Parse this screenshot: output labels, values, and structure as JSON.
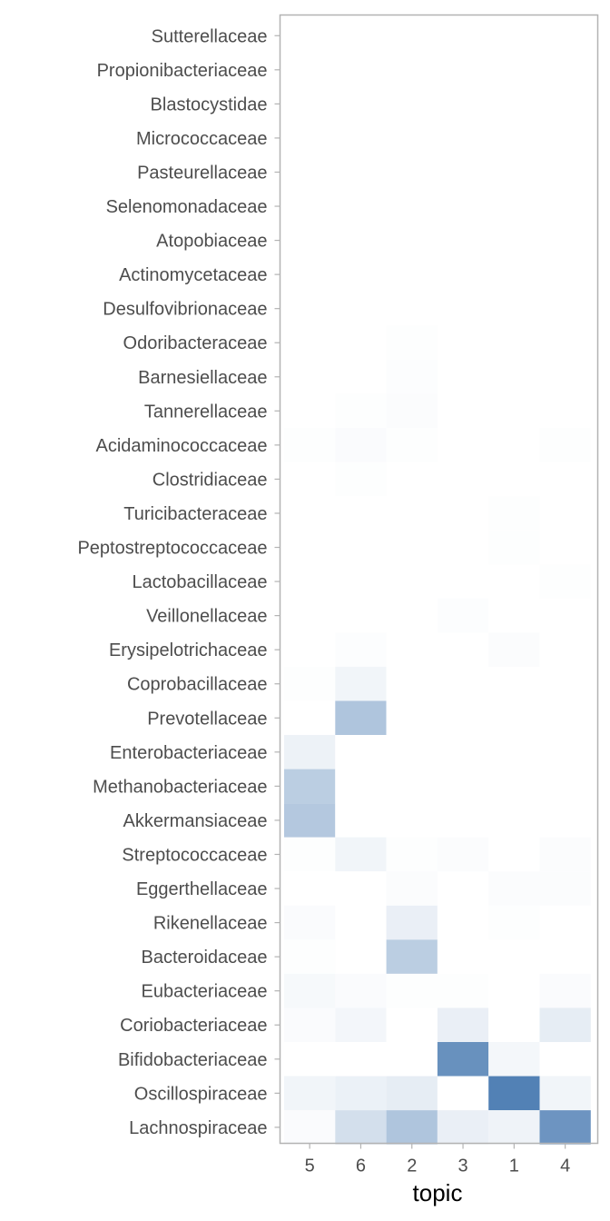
{
  "chart_data": {
    "type": "heatmap",
    "xlabel": "topic",
    "ylabel": "",
    "x_categories": [
      "5",
      "6",
      "2",
      "3",
      "1",
      "4"
    ],
    "y_categories": [
      "Sutterellaceae",
      "Propionibacteriaceae",
      "Blastocystidae",
      "Micrococcaceae",
      "Pasteurellaceae",
      "Selenomonadaceae",
      "Atopobiaceae",
      "Actinomycetaceae",
      "Desulfovibrionaceae",
      "Odoribacteraceae",
      "Barnesiellaceae",
      "Tannerellaceae",
      "Acidaminococcaceae",
      "Clostridiaceae",
      "Turicibacteraceae",
      "Peptostreptococcaceae",
      "Lactobacillaceae",
      "Veillonellaceae",
      "Erysipelotrichaceae",
      "Coprobacillaceae",
      "Prevotellaceae",
      "Enterobacteriaceae",
      "Methanobacteriaceae",
      "Akkermansiaceae",
      "Streptococcaceae",
      "Eggerthellaceae",
      "Rikenellaceae",
      "Bacteroidaceae",
      "Eubacteriaceae",
      "Coriobacteriaceae",
      "Bifidobacteriaceae",
      "Oscillospiraceae",
      "Lachnospiraceae"
    ],
    "values": [
      [
        0,
        0,
        0,
        0,
        0,
        0
      ],
      [
        0,
        0,
        0,
        0,
        0,
        0
      ],
      [
        0,
        0,
        0,
        0,
        0,
        0
      ],
      [
        0,
        0,
        0,
        0,
        0,
        0
      ],
      [
        0,
        0,
        0,
        0,
        0,
        0
      ],
      [
        0,
        0,
        0,
        0,
        0,
        0
      ],
      [
        0,
        0,
        0,
        0,
        0,
        0
      ],
      [
        0,
        0,
        0,
        0,
        0,
        0
      ],
      [
        0,
        0,
        0,
        0,
        0,
        0
      ],
      [
        0,
        0,
        0.01,
        0,
        0,
        0
      ],
      [
        0,
        0,
        0.015,
        0,
        0,
        0
      ],
      [
        0,
        0.01,
        0.02,
        0,
        0,
        0
      ],
      [
        0.01,
        0.03,
        0.01,
        0,
        0,
        0.01
      ],
      [
        0,
        0.01,
        0,
        0,
        0,
        0
      ],
      [
        0,
        0,
        0,
        0,
        0.01,
        0
      ],
      [
        0,
        0,
        0,
        0,
        0.01,
        0
      ],
      [
        0,
        0,
        0,
        0,
        0,
        0.01
      ],
      [
        0,
        0,
        0,
        0.015,
        0,
        0
      ],
      [
        0,
        0.015,
        0,
        0,
        0.02,
        0
      ],
      [
        0.01,
        0.08,
        0,
        0,
        0,
        0
      ],
      [
        0,
        0.45,
        0,
        0,
        0,
        0
      ],
      [
        0.1,
        0,
        0,
        0,
        0,
        0
      ],
      [
        0.38,
        0,
        0,
        0,
        0,
        0
      ],
      [
        0.42,
        0,
        0,
        0,
        0,
        0
      ],
      [
        0.01,
        0.08,
        0.01,
        0.02,
        0,
        0.02
      ],
      [
        0,
        0,
        0.02,
        0,
        0.02,
        0.02
      ],
      [
        0.03,
        0,
        0.12,
        0,
        0.01,
        0
      ],
      [
        0.01,
        0,
        0.38,
        0,
        0,
        0
      ],
      [
        0.05,
        0.03,
        0.01,
        0.01,
        0,
        0.03
      ],
      [
        0.03,
        0.07,
        0,
        0.12,
        0,
        0.14
      ],
      [
        0,
        0,
        0,
        0.85,
        0.06,
        0
      ],
      [
        0.08,
        0.11,
        0.14,
        0,
        0.97,
        0.08
      ],
      [
        0.03,
        0.25,
        0.45,
        0.12,
        0.09,
        0.82
      ]
    ],
    "color_low": "#ffffff",
    "color_high": "#4d7db3",
    "panel_border_color": "#b3b3b3",
    "tick_color": "#b3b3b3",
    "grid": false,
    "legend": "none"
  }
}
